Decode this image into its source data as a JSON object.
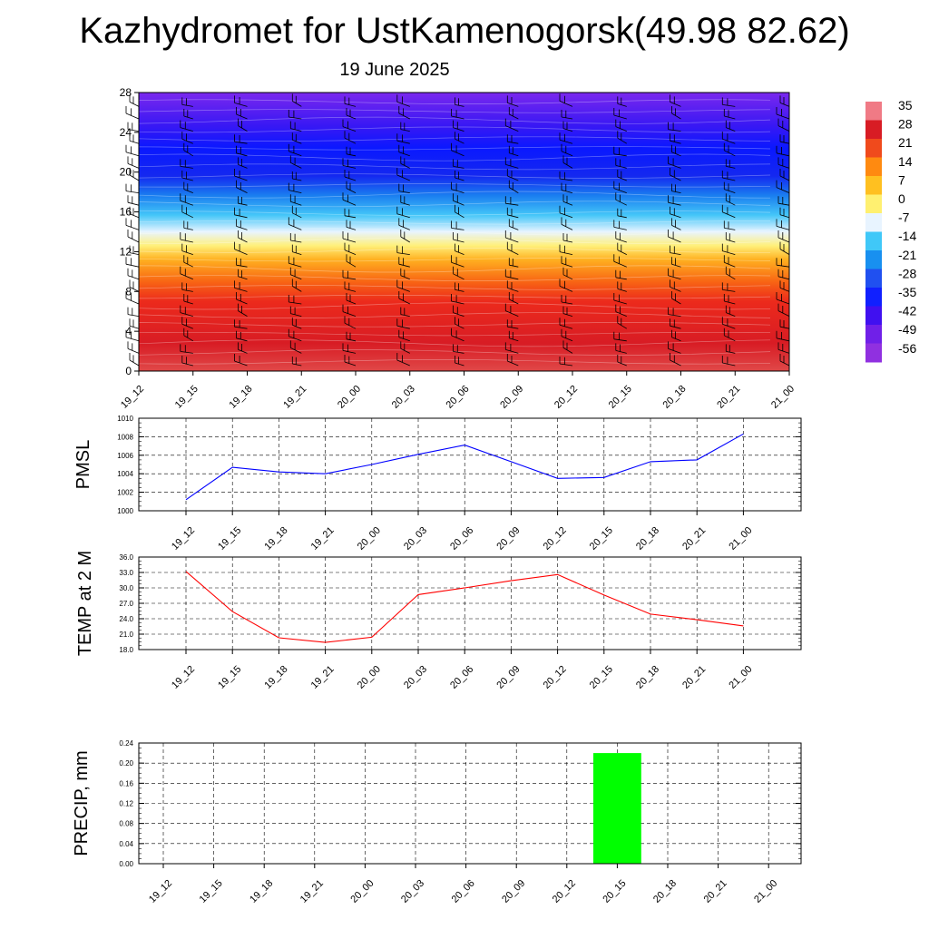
{
  "title": "Kazhydromet for UstKamenogorsk(49.98 82.62)",
  "subtitle": "19 June 2025",
  "time_labels": [
    "19_12",
    "19_15",
    "19_18",
    "19_21",
    "20_00",
    "20_03",
    "20_06",
    "20_09",
    "20_12",
    "20_15",
    "20_18",
    "20_21",
    "21_00"
  ],
  "colors": {
    "pmsl_line": "#0000ff",
    "temp_line": "#ff0000",
    "precip_bar": "#00ff00"
  },
  "chart_data": [
    {
      "type": "heatmap",
      "title": "",
      "xlabel": "",
      "ylabel": "",
      "x": [
        "19_12",
        "19_15",
        "19_18",
        "19_21",
        "20_00",
        "20_03",
        "20_06",
        "20_09",
        "20_12",
        "20_15",
        "20_18",
        "20_21",
        "21_00"
      ],
      "ylim": [
        0,
        28
      ],
      "y_ticks": [
        "0",
        "4",
        "8",
        "12",
        "16",
        "20",
        "24",
        "28"
      ],
      "colorbar": {
        "labels": [
          "35",
          "28",
          "21",
          "14",
          "7",
          "0",
          "-7",
          "-14",
          "-21",
          "-28",
          "-35",
          "-42",
          "-49",
          "-56"
        ],
        "colors": [
          "#f07a85",
          "#d81c24",
          "#f04a1c",
          "#ff8a10",
          "#ffc020",
          "#fff070",
          "#e8f4ff",
          "#40c8f8",
          "#1890f0",
          "#2050f0",
          "#1020ff",
          "#4010f0",
          "#7020e8",
          "#9030e0"
        ]
      },
      "wind_barbs": true
    },
    {
      "type": "line",
      "title": "",
      "xlabel": "",
      "ylabel": "PMSL",
      "x": [
        "19_12",
        "19_15",
        "19_18",
        "19_21",
        "20_00",
        "20_03",
        "20_06",
        "20_09",
        "20_12",
        "20_15",
        "20_18",
        "20_21",
        "21_00"
      ],
      "values": [
        1001.2,
        1004.7,
        1004.2,
        1004.0,
        1005.0,
        1006.1,
        1007.1,
        1005.3,
        1003.5,
        1003.6,
        1005.3,
        1005.5,
        1008.3
      ],
      "ylim": [
        1000,
        1010
      ],
      "y_ticks": [
        "1000",
        "1002",
        "1004",
        "1006",
        "1008",
        "1010"
      ],
      "grid": true
    },
    {
      "type": "line",
      "title": "",
      "xlabel": "",
      "ylabel": "TEMP at 2 M",
      "x": [
        "19_12",
        "19_15",
        "19_18",
        "19_21",
        "20_00",
        "20_03",
        "20_06",
        "20_09",
        "20_12",
        "20_15",
        "20_18",
        "20_21",
        "21_00"
      ],
      "values": [
        33.2,
        25.4,
        20.3,
        19.4,
        20.4,
        28.7,
        30.0,
        31.4,
        32.6,
        28.6,
        24.9,
        23.8,
        22.6
      ],
      "ylim": [
        18,
        36
      ],
      "y_ticks": [
        "18.0",
        "21.0",
        "24.0",
        "27.0",
        "30.0",
        "33.0",
        "36.0"
      ],
      "grid": true
    },
    {
      "type": "bar",
      "title": "",
      "xlabel": "",
      "ylabel": "PRECIP, mm",
      "categories": [
        "19_12",
        "19_15",
        "19_18",
        "19_21",
        "20_00",
        "20_03",
        "20_06",
        "20_09",
        "20_12",
        "20_15",
        "20_18",
        "20_21",
        "21_00"
      ],
      "values": [
        0,
        0,
        0,
        0,
        0,
        0,
        0,
        0,
        0,
        0.22,
        0,
        0,
        0
      ],
      "ylim": [
        0,
        0.24
      ],
      "y_ticks": [
        "0.00",
        "0.04",
        "0.08",
        "0.12",
        "0.16",
        "0.20",
        "0.24"
      ],
      "grid": true
    }
  ]
}
